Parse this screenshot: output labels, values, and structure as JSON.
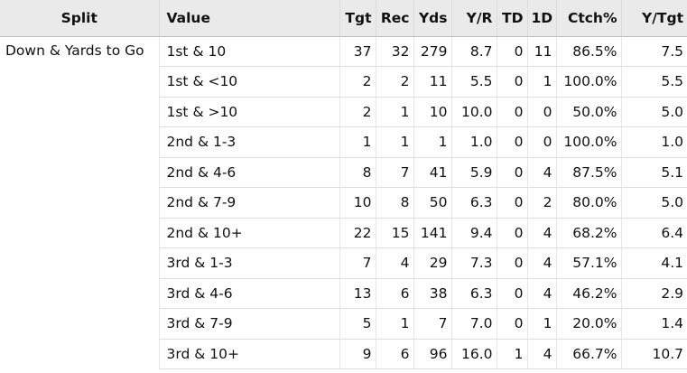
{
  "headers": {
    "split": "Split",
    "value": "Value",
    "tgt": "Tgt",
    "rec": "Rec",
    "yds": "Yds",
    "ypr": "Y/R",
    "td": "TD",
    "first_downs": "1D",
    "ctch_pct": "Ctch%",
    "ypt": "Y/Tgt"
  },
  "split_label": "Down & Yards to Go",
  "rows": [
    {
      "value": "1st & 10",
      "tgt": "37",
      "rec": "32",
      "yds": "279",
      "ypr": "8.7",
      "td": "0",
      "first_downs": "11",
      "ctch_pct": "86.5%",
      "ypt": "7.5"
    },
    {
      "value": "1st & <10",
      "tgt": "2",
      "rec": "2",
      "yds": "11",
      "ypr": "5.5",
      "td": "0",
      "first_downs": "1",
      "ctch_pct": "100.0%",
      "ypt": "5.5"
    },
    {
      "value": "1st & >10",
      "tgt": "2",
      "rec": "1",
      "yds": "10",
      "ypr": "10.0",
      "td": "0",
      "first_downs": "0",
      "ctch_pct": "50.0%",
      "ypt": "5.0"
    },
    {
      "value": "2nd & 1-3",
      "tgt": "1",
      "rec": "1",
      "yds": "1",
      "ypr": "1.0",
      "td": "0",
      "first_downs": "0",
      "ctch_pct": "100.0%",
      "ypt": "1.0"
    },
    {
      "value": "2nd & 4-6",
      "tgt": "8",
      "rec": "7",
      "yds": "41",
      "ypr": "5.9",
      "td": "0",
      "first_downs": "4",
      "ctch_pct": "87.5%",
      "ypt": "5.1"
    },
    {
      "value": "2nd & 7-9",
      "tgt": "10",
      "rec": "8",
      "yds": "50",
      "ypr": "6.3",
      "td": "0",
      "first_downs": "2",
      "ctch_pct": "80.0%",
      "ypt": "5.0"
    },
    {
      "value": "2nd & 10+",
      "tgt": "22",
      "rec": "15",
      "yds": "141",
      "ypr": "9.4",
      "td": "0",
      "first_downs": "4",
      "ctch_pct": "68.2%",
      "ypt": "6.4"
    },
    {
      "value": "3rd & 1-3",
      "tgt": "7",
      "rec": "4",
      "yds": "29",
      "ypr": "7.3",
      "td": "0",
      "first_downs": "4",
      "ctch_pct": "57.1%",
      "ypt": "4.1"
    },
    {
      "value": "3rd & 4-6",
      "tgt": "13",
      "rec": "6",
      "yds": "38",
      "ypr": "6.3",
      "td": "0",
      "first_downs": "4",
      "ctch_pct": "46.2%",
      "ypt": "2.9"
    },
    {
      "value": "3rd & 7-9",
      "tgt": "5",
      "rec": "1",
      "yds": "7",
      "ypr": "7.0",
      "td": "0",
      "first_downs": "1",
      "ctch_pct": "20.0%",
      "ypt": "1.4"
    },
    {
      "value": "3rd & 10+",
      "tgt": "9",
      "rec": "6",
      "yds": "96",
      "ypr": "16.0",
      "td": "1",
      "first_downs": "4",
      "ctch_pct": "66.7%",
      "ypt": "10.7"
    }
  ]
}
